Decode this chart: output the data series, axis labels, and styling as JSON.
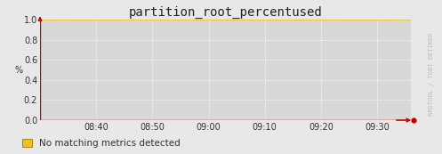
{
  "title": "partition_root_percentused",
  "ylabel": "%",
  "ylim": [
    0.0,
    1.0
  ],
  "yticks": [
    0.0,
    0.2,
    0.4,
    0.6,
    0.8,
    1.0
  ],
  "xtick_labels": [
    "08:40",
    "08:50",
    "09:00",
    "09:10",
    "09:20",
    "09:30"
  ],
  "xtick_positions": [
    1,
    2,
    3,
    4,
    5,
    6
  ],
  "xmin": 0.0,
  "xmax": 6.6,
  "legend_label": "No matching metrics detected",
  "legend_color": "#f0c020",
  "legend_edge_color": "#b09000",
  "bg_color": "#e8e8e8",
  "plot_bg_color": "#d8d8d8",
  "grid_color": "#ffffff",
  "grid_minor_color": "#e0b0b0",
  "title_color": "#222222",
  "axis_color": "#cc0000",
  "tick_color": "#333333",
  "font_color": "#333333",
  "watermark": "RRDTOOL / TOBI OETIKER",
  "watermark_color": "#bbbbbb",
  "data_line_color": "#f0c020",
  "data_line_y": 1.0,
  "title_fontsize": 10,
  "tick_fontsize": 7,
  "ylabel_fontsize": 7,
  "legend_fontsize": 7.5,
  "watermark_fontsize": 5
}
